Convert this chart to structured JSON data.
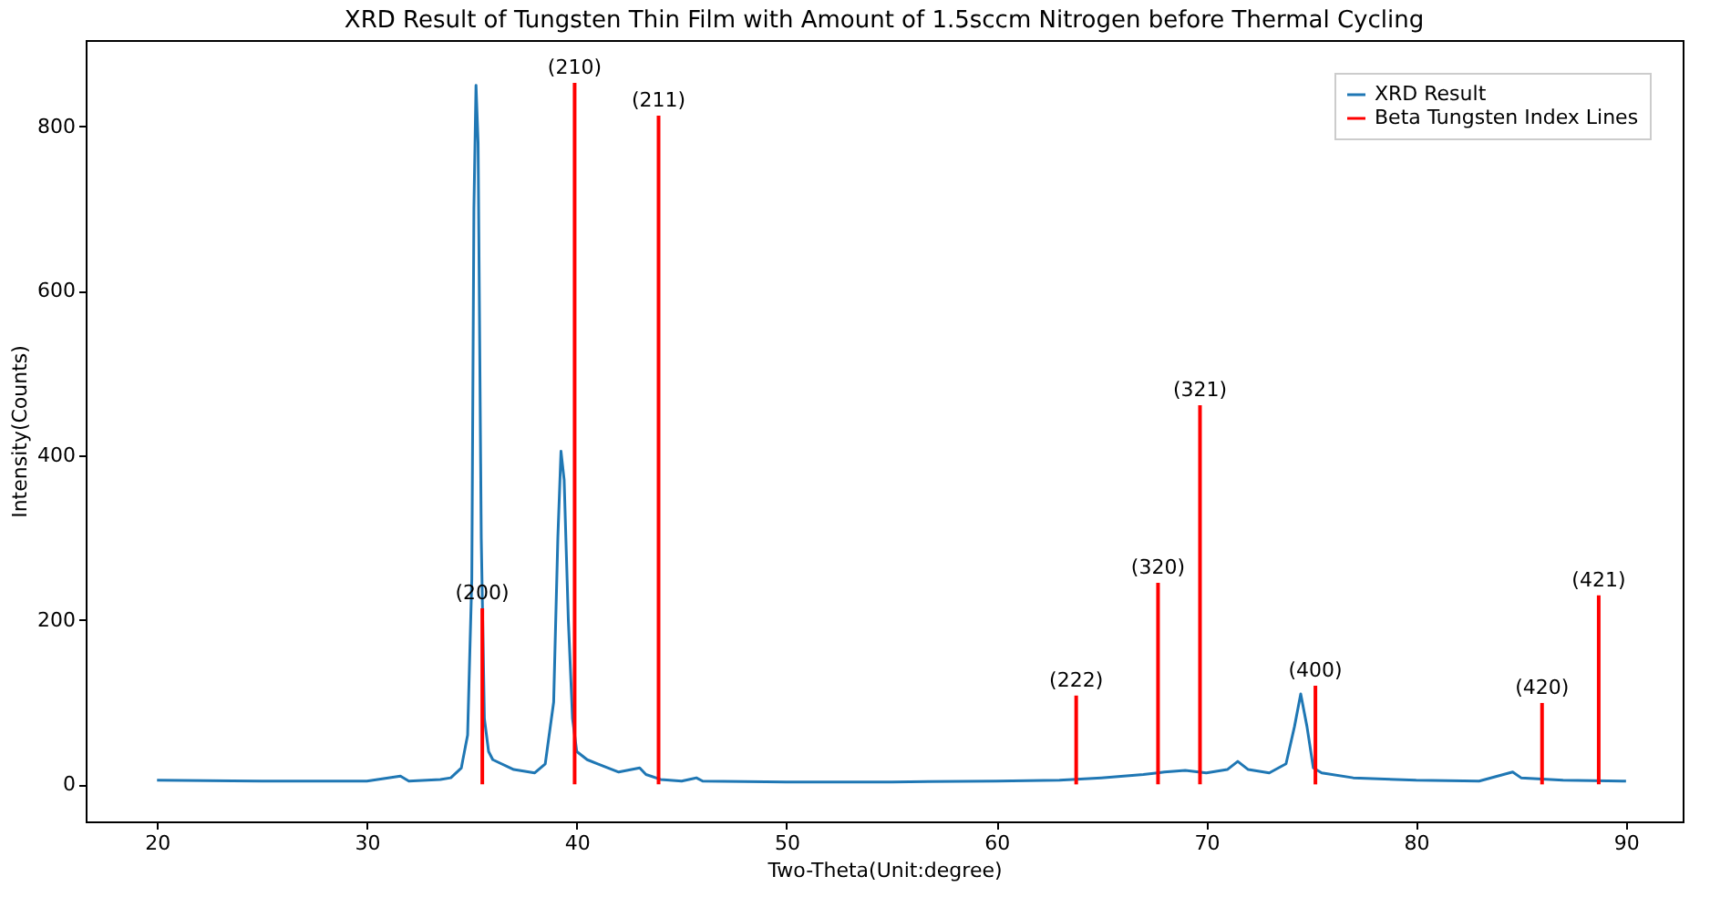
{
  "chart_data": {
    "type": "line",
    "title": "XRD Result of Tungsten Thin Film with Amount of 1.5sccm Nitrogen before Thermal Cycling",
    "xlabel": "Two-Theta(Unit:degree)",
    "ylabel": "Intensity(Counts)",
    "xlim": [
      16.6,
      92.7
    ],
    "ylim": [
      -45,
      905
    ],
    "xticks": [
      20,
      30,
      40,
      50,
      60,
      70,
      80,
      90
    ],
    "yticks": [
      0,
      200,
      400,
      600,
      800
    ],
    "grid": false,
    "legend": "top right",
    "series": [
      {
        "name": "XRD Result",
        "color": "#1f77b4",
        "x": [
          20,
          25,
          30,
          31.6,
          32,
          33.5,
          34,
          34.5,
          34.8,
          35.0,
          35.1,
          35.2,
          35.3,
          35.45,
          35.6,
          35.8,
          36,
          37,
          38,
          38.5,
          38.9,
          39.1,
          39.25,
          39.4,
          39.6,
          39.8,
          40,
          40.5,
          41,
          42,
          43,
          43.3,
          44,
          45,
          45.7,
          46,
          50,
          55,
          60,
          63,
          65,
          67,
          68,
          69,
          70,
          71,
          71.5,
          72,
          73,
          73.8,
          74.2,
          74.5,
          74.8,
          75.1,
          75.5,
          77,
          80,
          83,
          84.6,
          85,
          87,
          90
        ],
        "values": [
          5,
          4,
          4,
          10,
          4,
          6,
          8,
          20,
          60,
          250,
          700,
          850,
          780,
          300,
          80,
          40,
          30,
          18,
          14,
          25,
          100,
          300,
          405,
          370,
          200,
          80,
          40,
          30,
          25,
          15,
          20,
          12,
          6,
          4,
          8,
          4,
          3,
          3,
          4,
          5,
          8,
          12,
          15,
          17,
          14,
          18,
          28,
          18,
          14,
          25,
          70,
          110,
          70,
          20,
          14,
          8,
          5,
          4,
          15,
          8,
          5,
          4
        ]
      },
      {
        "name": "Beta Tungsten Index Lines",
        "type": "bar",
        "color": "#ff0000",
        "x": [
          35.5,
          39.9,
          43.9,
          63.8,
          67.7,
          69.7,
          75.2,
          86.0,
          88.7
        ],
        "values": [
          214,
          853,
          813,
          108,
          245,
          461,
          120,
          99,
          230
        ]
      }
    ],
    "annotations": [
      {
        "text": "(200)",
        "x": 35.5,
        "y": 214
      },
      {
        "text": "(210)",
        "x": 39.9,
        "y": 853
      },
      {
        "text": "(211)",
        "x": 43.9,
        "y": 813
      },
      {
        "text": "(222)",
        "x": 63.8,
        "y": 108
      },
      {
        "text": "(320)",
        "x": 67.7,
        "y": 245
      },
      {
        "text": "(321)",
        "x": 69.7,
        "y": 461
      },
      {
        "text": "(400)",
        "x": 75.2,
        "y": 120
      },
      {
        "text": "(420)",
        "x": 86.0,
        "y": 99
      },
      {
        "text": "(421)",
        "x": 88.7,
        "y": 230
      }
    ]
  }
}
